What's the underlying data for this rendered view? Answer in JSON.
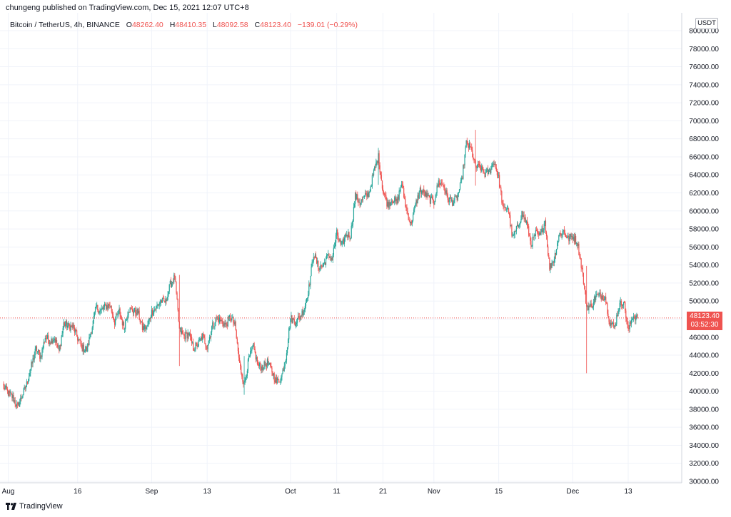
{
  "header": {
    "publisher": "chungeng published on TradingView.com, Dec 15, 2021 12:07 UTC+8",
    "symbol": "Bitcoin / TetherUS, 4h, BINANCE",
    "open_label": "O",
    "open": "48262.40",
    "high_label": "H",
    "high": "48410.35",
    "low_label": "L",
    "low": "48092.58",
    "close_label": "C",
    "close": "48123.40",
    "change": "−139.01 (−0.29%)",
    "currency": "USDT"
  },
  "price_badge": {
    "price": "48123.40",
    "countdown": "03:52:30"
  },
  "branding": {
    "name": "TradingView"
  },
  "colors": {
    "up": "#26a69a",
    "down": "#ef5350",
    "grid": "#f0f3fa",
    "price_line": "#ef5350"
  },
  "chart_data": {
    "type": "candlestick",
    "x_ticks": [
      "Aug",
      "16",
      "Sep",
      "13",
      "Oct",
      "11",
      "21",
      "Nov",
      "15",
      "Dec",
      "13"
    ],
    "y_ticks": [
      "80000.00",
      "78000.00",
      "76000.00",
      "74000.00",
      "72000.00",
      "70000.00",
      "68000.00",
      "66000.00",
      "64000.00",
      "62000.00",
      "60000.00",
      "58000.00",
      "56000.00",
      "54000.00",
      "52000.00",
      "50000.00",
      "48000.00",
      "46000.00",
      "44000.00",
      "42000.00",
      "40000.00",
      "38000.00",
      "36000.00",
      "34000.00",
      "32000.00",
      "30000.00"
    ],
    "ylim": [
      30000,
      80000
    ],
    "x_range": [
      "2021-07-31",
      "2021-12-15"
    ],
    "last_price": 48123.4,
    "series": [
      {
        "name": "Bitcoin / TetherUS, 4h, BINANCE",
        "close_path": [
          [
            "2021-07-31",
            40500
          ],
          [
            "2021-08-01",
            39800
          ],
          [
            "2021-08-02",
            39300
          ],
          [
            "2021-08-03",
            38200
          ],
          [
            "2021-08-04",
            39500
          ],
          [
            "2021-08-05",
            40800
          ],
          [
            "2021-08-06",
            42800
          ],
          [
            "2021-08-07",
            44700
          ],
          [
            "2021-08-08",
            43800
          ],
          [
            "2021-08-09",
            46000
          ],
          [
            "2021-08-10",
            45600
          ],
          [
            "2021-08-11",
            45900
          ],
          [
            "2021-08-12",
            44400
          ],
          [
            "2021-08-13",
            47500
          ],
          [
            "2021-08-14",
            47200
          ],
          [
            "2021-08-15",
            47100
          ],
          [
            "2021-08-16",
            45900
          ],
          [
            "2021-08-17",
            44800
          ],
          [
            "2021-08-18",
            44600
          ],
          [
            "2021-08-19",
            46800
          ],
          [
            "2021-08-20",
            49300
          ],
          [
            "2021-08-21",
            48900
          ],
          [
            "2021-08-22",
            49400
          ],
          [
            "2021-08-23",
            49600
          ],
          [
            "2021-08-24",
            47700
          ],
          [
            "2021-08-25",
            48900
          ],
          [
            "2021-08-26",
            47000
          ],
          [
            "2021-08-27",
            49100
          ],
          [
            "2021-08-28",
            48900
          ],
          [
            "2021-08-29",
            48800
          ],
          [
            "2021-08-30",
            47000
          ],
          [
            "2021-08-31",
            47100
          ],
          [
            "2021-09-01",
            48800
          ],
          [
            "2021-09-02",
            49300
          ],
          [
            "2021-09-03",
            50000
          ],
          [
            "2021-09-04",
            49900
          ],
          [
            "2021-09-05",
            51800
          ],
          [
            "2021-09-06",
            52700
          ],
          [
            "2021-09-07",
            46800
          ],
          [
            "2021-09-08",
            46100
          ],
          [
            "2021-09-09",
            46400
          ],
          [
            "2021-09-10",
            44800
          ],
          [
            "2021-09-11",
            45200
          ],
          [
            "2021-09-12",
            46100
          ],
          [
            "2021-09-13",
            44900
          ],
          [
            "2021-09-14",
            47100
          ],
          [
            "2021-09-15",
            48100
          ],
          [
            "2021-09-16",
            47800
          ],
          [
            "2021-09-17",
            47300
          ],
          [
            "2021-09-18",
            48300
          ],
          [
            "2021-09-19",
            47300
          ],
          [
            "2021-09-20",
            43000
          ],
          [
            "2021-09-21",
            40700
          ],
          [
            "2021-09-22",
            43600
          ],
          [
            "2021-09-23",
            44900
          ],
          [
            "2021-09-24",
            42800
          ],
          [
            "2021-09-25",
            42700
          ],
          [
            "2021-09-26",
            43200
          ],
          [
            "2021-09-27",
            42200
          ],
          [
            "2021-09-28",
            41000
          ],
          [
            "2021-09-29",
            41500
          ],
          [
            "2021-09-30",
            43800
          ],
          [
            "2021-10-01",
            48100
          ],
          [
            "2021-10-02",
            47700
          ],
          [
            "2021-10-03",
            48200
          ],
          [
            "2021-10-04",
            49200
          ],
          [
            "2021-10-05",
            51500
          ],
          [
            "2021-10-06",
            55300
          ],
          [
            "2021-10-07",
            53800
          ],
          [
            "2021-10-08",
            53900
          ],
          [
            "2021-10-09",
            55000
          ],
          [
            "2021-10-10",
            54700
          ],
          [
            "2021-10-11",
            57500
          ],
          [
            "2021-10-12",
            56000
          ],
          [
            "2021-10-13",
            57400
          ],
          [
            "2021-10-14",
            57300
          ],
          [
            "2021-10-15",
            61700
          ],
          [
            "2021-10-16",
            60900
          ],
          [
            "2021-10-17",
            61500
          ],
          [
            "2021-10-18",
            62000
          ],
          [
            "2021-10-19",
            64300
          ],
          [
            "2021-10-20",
            66000
          ],
          [
            "2021-10-21",
            62200
          ],
          [
            "2021-10-22",
            60700
          ],
          [
            "2021-10-23",
            61300
          ],
          [
            "2021-10-24",
            60900
          ],
          [
            "2021-10-25",
            63100
          ],
          [
            "2021-10-26",
            60300
          ],
          [
            "2021-10-27",
            58500
          ],
          [
            "2021-10-28",
            60600
          ],
          [
            "2021-10-29",
            62300
          ],
          [
            "2021-10-30",
            61900
          ],
          [
            "2021-10-31",
            61300
          ],
          [
            "2021-11-01",
            61000
          ],
          [
            "2021-11-02",
            63200
          ],
          [
            "2021-11-03",
            62900
          ],
          [
            "2021-11-04",
            61400
          ],
          [
            "2021-11-05",
            61000
          ],
          [
            "2021-11-06",
            61500
          ],
          [
            "2021-11-07",
            63300
          ],
          [
            "2021-11-08",
            67500
          ],
          [
            "2021-11-09",
            66900
          ],
          [
            "2021-11-10",
            64900
          ],
          [
            "2021-11-11",
            64800
          ],
          [
            "2021-11-12",
            64100
          ],
          [
            "2021-11-13",
            64400
          ],
          [
            "2021-11-14",
            65500
          ],
          [
            "2021-11-15",
            63600
          ],
          [
            "2021-11-16",
            60100
          ],
          [
            "2021-11-17",
            60400
          ],
          [
            "2021-11-18",
            56900
          ],
          [
            "2021-11-19",
            58100
          ],
          [
            "2021-11-20",
            59700
          ],
          [
            "2021-11-21",
            58700
          ],
          [
            "2021-11-22",
            56300
          ],
          [
            "2021-11-23",
            57500
          ],
          [
            "2021-11-24",
            57200
          ],
          [
            "2021-11-25",
            58900
          ],
          [
            "2021-11-26",
            53700
          ],
          [
            "2021-11-27",
            54700
          ],
          [
            "2021-11-28",
            57300
          ],
          [
            "2021-11-29",
            57800
          ],
          [
            "2021-11-30",
            56900
          ],
          [
            "2021-12-01",
            57200
          ],
          [
            "2021-12-02",
            56500
          ],
          [
            "2021-12-03",
            53600
          ],
          [
            "2021-12-04",
            49400
          ],
          [
            "2021-12-05",
            49400
          ],
          [
            "2021-12-06",
            50600
          ],
          [
            "2021-12-07",
            50600
          ],
          [
            "2021-12-08",
            50500
          ],
          [
            "2021-12-09",
            47600
          ],
          [
            "2021-12-10",
            47100
          ],
          [
            "2021-12-11",
            49400
          ],
          [
            "2021-12-12",
            50100
          ],
          [
            "2021-12-13",
            46700
          ],
          [
            "2021-12-14",
            48400
          ],
          [
            "2021-12-15",
            48123
          ]
        ],
        "notable_wicks": [
          [
            "2021-09-07",
            52900,
            42800
          ],
          [
            "2021-09-21",
            43900,
            39600
          ],
          [
            "2021-10-20",
            67000,
            62900
          ],
          [
            "2021-11-10",
            69000,
            62800
          ],
          [
            "2021-12-04",
            53900,
            42000
          ]
        ]
      }
    ]
  }
}
